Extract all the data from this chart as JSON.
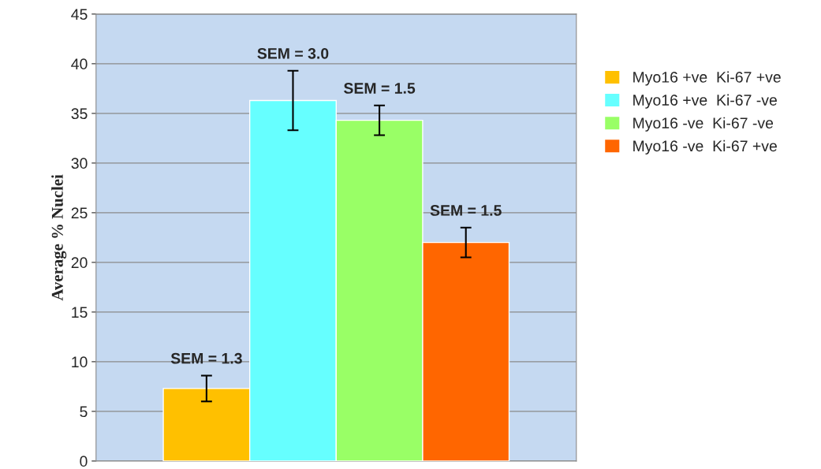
{
  "chart_data": {
    "type": "bar",
    "ylabel": "Average % Nuclei",
    "categories": [
      null
    ],
    "series": [
      {
        "name": "Myo16 +ve  Ki-67 +ve",
        "color": "#ffc000",
        "values": [
          7.3
        ],
        "errors": [
          1.3
        ]
      },
      {
        "name": "Myo16 +ve  Ki-67 -ve",
        "color": "#66ffff",
        "values": [
          36.3
        ],
        "errors": [
          3.0
        ]
      },
      {
        "name": "Myo16 -ve  Ki-67 -ve",
        "color": "#99ff66",
        "values": [
          34.3
        ],
        "errors": [
          1.5
        ]
      },
      {
        "name": "Myo16 -ve  Ki-67 +ve",
        "color": "#ff6600",
        "values": [
          22.0
        ],
        "errors": [
          1.5
        ]
      }
    ],
    "annotations": [
      {
        "text": "SEM = 1.3",
        "y": 8.6
      },
      {
        "text": "SEM = 3.0",
        "y": 39.3
      },
      {
        "text": "SEM = 1.5",
        "y": 35.8
      },
      {
        "text": "SEM = 1.5",
        "y": 23.5
      }
    ],
    "ylim": [
      0,
      45
    ],
    "yticks": [
      0,
      5,
      10,
      15,
      20,
      25,
      30,
      35,
      40,
      45
    ],
    "grid": "y",
    "legend": "right"
  }
}
